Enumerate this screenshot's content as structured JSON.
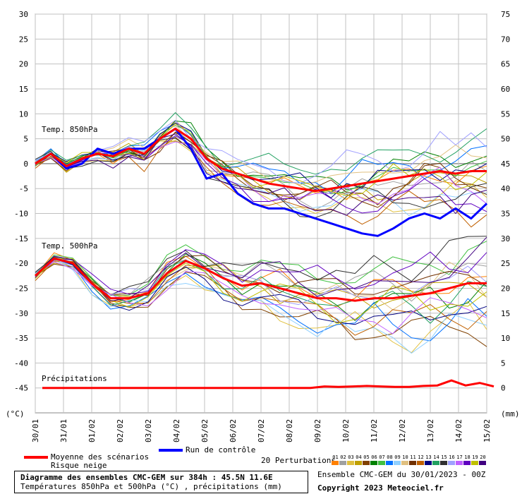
{
  "chart_data": {
    "type": "line",
    "x_labels": [
      "30/01",
      "31/01",
      "01/02",
      "02/02",
      "03/02",
      "04/02",
      "05/02",
      "06/02",
      "07/02",
      "08/02",
      "09/02",
      "10/02",
      "11/02",
      "12/02",
      "13/02",
      "14/02",
      "15/02"
    ],
    "y_left_ticks": [
      30,
      25,
      20,
      15,
      10,
      5,
      0,
      -5,
      -10,
      -15,
      -20,
      -25,
      -30,
      -35,
      -40,
      -45
    ],
    "y_right_ticks": [
      75,
      70,
      65,
      60,
      55,
      50,
      45,
      40,
      35,
      30,
      25,
      20,
      15,
      10,
      5,
      0
    ],
    "ylim_left": [
      -50,
      30
    ],
    "ylim_right": [
      -5,
      75
    ],
    "left_unit": "(°C)",
    "right_unit": "(mm)",
    "section_labels": {
      "t850": "Temp. 850hPa",
      "t500": "Temp. 500hPa",
      "precip": "Précipitations"
    },
    "t850_mean": [
      0,
      2,
      -0.5,
      1,
      2,
      1.5,
      3,
      2,
      5,
      7,
      5,
      1,
      -1,
      -2,
      -3,
      -4,
      -4.5,
      -5,
      -5.5,
      -5,
      -4.5,
      -4,
      -3.5,
      -3,
      -2.5,
      -2,
      -1.5,
      -2,
      -1.5,
      -1.5
    ],
    "t850_control": [
      0,
      2,
      -1,
      0,
      3,
      2,
      3,
      3,
      5,
      7,
      3,
      -3,
      -2,
      -6,
      -8,
      -9,
      -9,
      -10,
      -11,
      -12,
      -13,
      -14,
      -14.5,
      -13,
      -11,
      -10,
      -11,
      -9,
      -11,
      -8
    ],
    "t500_mean": [
      -22.5,
      -19,
      -20,
      -24,
      -27,
      -27,
      -26,
      -22,
      -19.5,
      -21,
      -23,
      -24.5,
      -24,
      -25,
      -26,
      -27,
      -27,
      -27.5,
      -27,
      -27,
      -26.5,
      -26,
      -25,
      -24,
      -24
    ],
    "precip_mean": [
      0,
      0,
      0,
      0,
      0,
      0,
      0,
      0,
      0,
      0.3,
      0.2,
      0.3,
      0.4,
      0.3,
      0.2,
      0.2,
      0.4,
      0.5,
      1.5,
      0.5,
      1,
      0.3
    ],
    "precip_x_days": [
      0,
      1.5,
      3,
      4.5,
      6,
      7.5,
      8.5,
      9,
      9.5,
      10,
      10.5,
      11,
      11.5,
      12,
      12.5,
      13,
      13.5,
      14,
      14.5,
      15,
      15.5,
      16
    ],
    "perturbation_colors": [
      "#ff8000",
      "#a0a0a0",
      "#e0c040",
      "#c0a000",
      "#804000",
      "#008000",
      "#40c040",
      "#0070ff",
      "#90d0ff",
      "#e0c080",
      "#703000",
      "#c06000",
      "#000080",
      "#20a060",
      "#303030",
      "#a0a0ff",
      "#c060ff",
      "#6000c0",
      "#c0c000",
      "#400080"
    ]
  },
  "legend": {
    "mean_label": "Moyenne des scénarios",
    "snow_label": "Risque neige",
    "control_label": "Run de contrôle",
    "pert_label": "20 Perturbations",
    "pert_numbers": [
      "01",
      "02",
      "03",
      "04",
      "05",
      "06",
      "07",
      "08",
      "09",
      "10",
      "11",
      "12",
      "13",
      "14",
      "15",
      "16",
      "17",
      "18",
      "19",
      "20"
    ]
  },
  "footer": {
    "title": "Diagramme des ensembles CMC-GEM sur 384h : 45.5N 11.6E",
    "subtitle": "Températures 850hPa et 500hPa (°C) , précipitations (mm)",
    "ensemble": "Ensemble CMC-GEM du 30/01/2023 - 00Z",
    "copyright": "Copyright 2023 Meteociel.fr"
  },
  "colors": {
    "mean": "#ff0000",
    "control": "#0000ff",
    "grid": "#c0c0c0"
  }
}
